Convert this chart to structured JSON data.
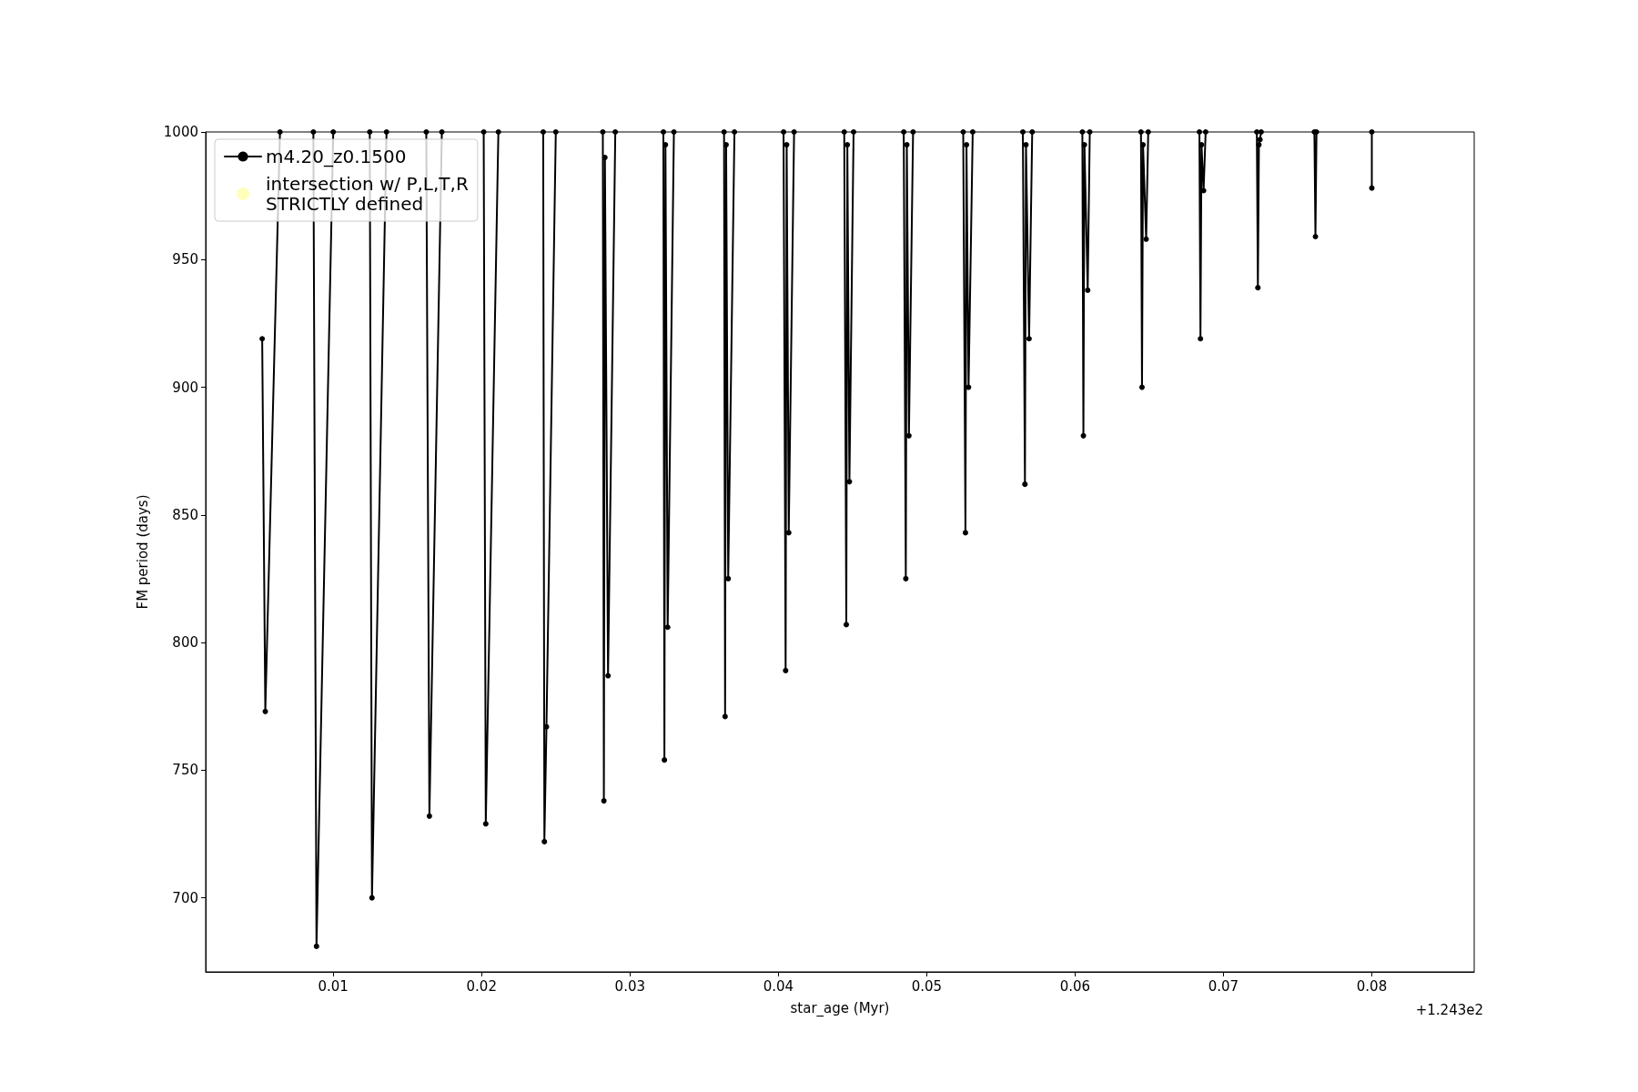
{
  "chart_data": {
    "type": "line",
    "xlabel": "star_age (Myr)",
    "ylabel": "FM period (days)",
    "annotations": [
      "+1.243e2"
    ],
    "xlim": [
      0.0014,
      0.0869
    ],
    "ylim": [
      671,
      1000
    ],
    "xticks": [
      0.01,
      0.02,
      0.03,
      0.04,
      0.05,
      0.06,
      0.07,
      0.08
    ],
    "yticks": [
      700,
      750,
      800,
      850,
      900,
      950,
      1000
    ],
    "grid": false,
    "legend": "top left",
    "marker": "circle",
    "line_style": "solid",
    "series": [
      {
        "name": "m4.20_z0.1500",
        "color": "#000000",
        "x": [
          0.00521,
          0.00542,
          0.00641,
          null,
          0.00866,
          0.00887,
          0.01,
          null,
          0.01246,
          0.01261,
          0.01359,
          null,
          0.01627,
          0.01648,
          0.01732,
          null,
          0.02014,
          0.02028,
          0.02113,
          null,
          0.02415,
          0.02423,
          0.02437,
          0.025,
          null,
          0.02817,
          0.02824,
          0.02831,
          0.02852,
          0.02901,
          null,
          0.03225,
          0.03232,
          0.03239,
          0.03254,
          0.03296,
          null,
          0.03634,
          0.03641,
          0.03648,
          0.03662,
          0.03704,
          null,
          0.04035,
          0.04049,
          0.04056,
          0.0407,
          0.04106,
          null,
          0.04444,
          0.04458,
          0.04465,
          0.04479,
          0.04507,
          null,
          0.04845,
          0.04859,
          0.04866,
          0.0488,
          0.04908,
          null,
          0.05246,
          0.05261,
          0.05268,
          0.05282,
          0.0531,
          null,
          0.05648,
          0.05662,
          0.05669,
          0.0569,
          0.05711,
          null,
          0.06049,
          0.06056,
          0.06063,
          0.06085,
          0.06099,
          null,
          0.06444,
          0.06451,
          0.06458,
          0.06479,
          0.06493,
          null,
          0.06838,
          0.06845,
          0.06852,
          0.06866,
          0.0688,
          null,
          0.07225,
          0.07232,
          0.07239,
          0.07246,
          0.07254,
          null,
          0.07613,
          0.0762,
          0.07627,
          null,
          0.08,
          0.08
        ],
        "values": [
          919,
          773,
          1000,
          null,
          1000,
          681,
          1000,
          null,
          1000,
          700,
          1000,
          null,
          1000,
          732,
          1000,
          null,
          1000,
          729,
          1000,
          null,
          1000,
          722,
          767,
          1000,
          null,
          1000,
          738,
          990,
          787,
          1000,
          null,
          1000,
          754,
          995,
          806,
          1000,
          null,
          1000,
          771,
          995,
          825,
          1000,
          null,
          1000,
          789,
          995,
          843,
          1000,
          null,
          1000,
          807,
          995,
          863,
          1000,
          null,
          1000,
          825,
          995,
          881,
          1000,
          null,
          1000,
          843,
          995,
          900,
          1000,
          null,
          1000,
          862,
          995,
          919,
          1000,
          null,
          1000,
          881,
          995,
          938,
          1000,
          null,
          1000,
          900,
          995,
          958,
          1000,
          null,
          1000,
          919,
          995,
          977,
          1000,
          null,
          1000,
          939,
          995,
          997,
          1000,
          null,
          1000,
          959,
          1000,
          null,
          1000,
          978
        ]
      },
      {
        "name": "intersection w/ P,L,T,R\nSTRICTLY defined",
        "color": "#ffffa0",
        "type": "scatter"
      }
    ]
  }
}
